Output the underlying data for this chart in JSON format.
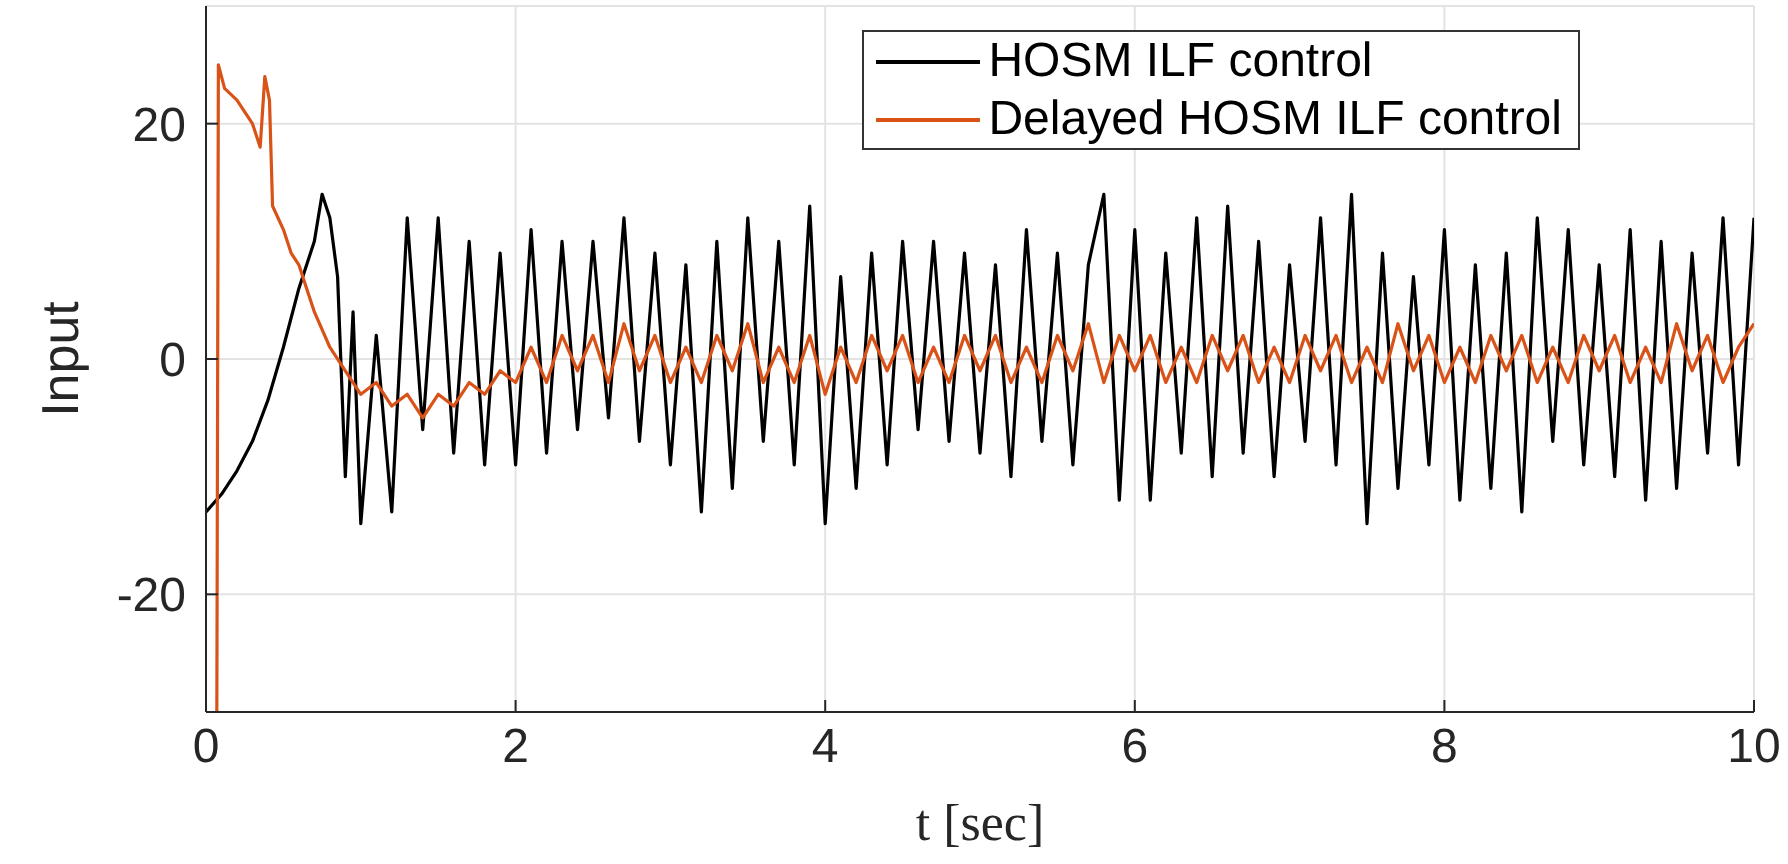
{
  "chart_data": {
    "type": "line",
    "xlabel": "t [sec]",
    "ylabel": "Input",
    "xlim": [
      0,
      10
    ],
    "xticks": [
      0,
      2,
      4,
      6,
      8,
      10
    ],
    "ylim": [
      -30,
      30
    ],
    "yticks": [
      -20,
      0,
      20
    ],
    "grid": true,
    "legend": "top right",
    "marker": "none",
    "line_style": "solid",
    "series": [
      {
        "name": "HOSM ILF control",
        "color": "#000000",
        "x": [
          0,
          0.1,
          0.2,
          0.3,
          0.4,
          0.5,
          0.6,
          0.7,
          0.75,
          0.8,
          0.85,
          0.9,
          0.95,
          1.0,
          1.1,
          1.2,
          1.3,
          1.4,
          1.5,
          1.6,
          1.7,
          1.8,
          1.9,
          2.0,
          2.1,
          2.2,
          2.3,
          2.4,
          2.5,
          2.6,
          2.7,
          2.8,
          2.9,
          3.0,
          3.1,
          3.2,
          3.3,
          3.4,
          3.5,
          3.6,
          3.7,
          3.8,
          3.9,
          4.0,
          4.1,
          4.2,
          4.3,
          4.4,
          4.5,
          4.6,
          4.7,
          4.8,
          4.9,
          5.0,
          5.1,
          5.2,
          5.3,
          5.4,
          5.5,
          5.6,
          5.7,
          5.8,
          5.9,
          6.0,
          6.1,
          6.2,
          6.3,
          6.4,
          6.5,
          6.6,
          6.7,
          6.8,
          6.9,
          7.0,
          7.1,
          7.2,
          7.3,
          7.4,
          7.5,
          7.6,
          7.7,
          7.8,
          7.9,
          8.0,
          8.1,
          8.2,
          8.3,
          8.4,
          8.5,
          8.6,
          8.7,
          8.8,
          8.9,
          9.0,
          9.1,
          9.2,
          9.3,
          9.4,
          9.5,
          9.6,
          9.7,
          9.8,
          9.9,
          10.0
        ],
        "values": [
          -13,
          -11.5,
          -9.5,
          -7,
          -3.5,
          1,
          6,
          10,
          14,
          12,
          7,
          -10,
          4,
          -14,
          2,
          -13,
          12,
          -6,
          12,
          -8,
          10,
          -9,
          9,
          -9,
          11,
          -8,
          10,
          -6,
          10,
          -5,
          12,
          -7,
          9,
          -9,
          8,
          -13,
          10,
          -11,
          12,
          -7,
          10,
          -9,
          13,
          -14,
          7,
          -11,
          9,
          -9,
          10,
          -6,
          10,
          -7,
          9,
          -8,
          8,
          -10,
          11,
          -7,
          9,
          -9,
          8,
          14,
          -12,
          11,
          -12,
          9,
          -8,
          12,
          -10,
          13,
          -8,
          10,
          -10,
          8,
          -7,
          12,
          -9,
          14,
          -14,
          9,
          -11,
          7,
          -9,
          11,
          -12,
          8,
          -11,
          9,
          -13,
          12,
          -7,
          11,
          -9,
          8,
          -10,
          11,
          -12,
          10,
          -11,
          9,
          -8,
          12,
          -9,
          12
        ]
      },
      {
        "name": "Delayed HOSM ILF control",
        "color": "#d95319",
        "x": [
          0.07,
          0.08,
          0.12,
          0.2,
          0.3,
          0.35,
          0.38,
          0.41,
          0.43,
          0.5,
          0.55,
          0.6,
          0.65,
          0.7,
          0.8,
          0.9,
          1.0,
          1.1,
          1.2,
          1.3,
          1.4,
          1.5,
          1.6,
          1.7,
          1.8,
          1.9,
          2.0,
          2.1,
          2.2,
          2.3,
          2.4,
          2.5,
          2.6,
          2.7,
          2.8,
          2.9,
          3.0,
          3.1,
          3.2,
          3.3,
          3.4,
          3.5,
          3.6,
          3.7,
          3.8,
          3.9,
          4.0,
          4.1,
          4.2,
          4.3,
          4.4,
          4.5,
          4.6,
          4.7,
          4.8,
          4.9,
          5.0,
          5.1,
          5.2,
          5.3,
          5.4,
          5.5,
          5.6,
          5.7,
          5.8,
          5.9,
          6.0,
          6.1,
          6.2,
          6.3,
          6.4,
          6.5,
          6.6,
          6.7,
          6.8,
          6.9,
          7.0,
          7.1,
          7.2,
          7.3,
          7.4,
          7.5,
          7.6,
          7.7,
          7.8,
          7.9,
          8.0,
          8.1,
          8.2,
          8.3,
          8.4,
          8.5,
          8.6,
          8.7,
          8.8,
          8.9,
          9.0,
          9.1,
          9.2,
          9.3,
          9.4,
          9.5,
          9.6,
          9.7,
          9.8,
          9.9,
          10.0
        ],
        "values": [
          -30,
          25,
          23,
          22,
          20,
          18,
          24,
          22,
          13,
          11,
          9,
          8,
          6,
          4,
          1,
          -1,
          -3,
          -2,
          -4,
          -3,
          -5,
          -3,
          -4,
          -2,
          -3,
          -1,
          -2,
          1,
          -2,
          2,
          -1,
          2,
          -2,
          3,
          -1,
          2,
          -2,
          1,
          -2,
          2,
          -1,
          3,
          -2,
          1,
          -2,
          2,
          -3,
          1,
          -2,
          2,
          -1,
          2,
          -2,
          1,
          -2,
          2,
          -1,
          2,
          -2,
          1,
          -2,
          2,
          -1,
          3,
          -2,
          2,
          -1,
          2,
          -2,
          1,
          -2,
          2,
          -1,
          2,
          -2,
          1,
          -2,
          2,
          -1,
          2,
          -2,
          1,
          -2,
          3,
          -1,
          2,
          -2,
          1,
          -2,
          2,
          -1,
          2,
          -2,
          1,
          -2,
          2,
          -1,
          2,
          -2,
          1,
          -2,
          3,
          -1,
          2,
          -2,
          1,
          3
        ]
      }
    ]
  }
}
